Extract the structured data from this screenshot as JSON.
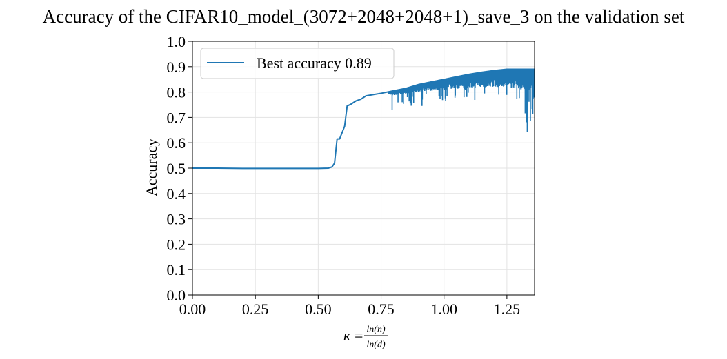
{
  "chart_data": {
    "type": "line",
    "title": "Accuracy of the CIFAR10_model_(3072+2048+2048+1)_save_3 on the validation set",
    "xlabel": {
      "symbol": "κ",
      "equals": "=",
      "numerator": "ln(n)",
      "denominator": "ln(d)"
    },
    "ylabel": "Accuracy",
    "xlim": [
      0.0,
      1.36
    ],
    "ylim": [
      0.0,
      1.0
    ],
    "x_ticks": [
      0.0,
      0.25,
      0.5,
      0.75,
      1.0,
      1.25
    ],
    "x_tick_labels": [
      "0.00",
      "0.25",
      "0.50",
      "0.75",
      "1.00",
      "1.25"
    ],
    "y_ticks": [
      0.0,
      0.1,
      0.2,
      0.3,
      0.4,
      0.5,
      0.6,
      0.7,
      0.8,
      0.9,
      1.0
    ],
    "y_tick_labels": [
      "0.0",
      "0.1",
      "0.2",
      "0.3",
      "0.4",
      "0.5",
      "0.6",
      "0.7",
      "0.8",
      "0.9",
      "1.0"
    ],
    "grid": true,
    "legend_position": "upper-left",
    "series": [
      {
        "name": "Best accuracy 0.89",
        "color": "#1f77b4",
        "x": [
          0.0,
          0.1,
          0.2,
          0.3,
          0.4,
          0.5,
          0.54,
          0.555,
          0.565,
          0.575,
          0.585,
          0.595,
          0.605,
          0.615,
          0.63,
          0.65,
          0.67,
          0.69,
          0.72,
          0.75,
          0.8,
          0.85,
          0.9,
          0.95,
          1.0,
          1.05,
          1.1,
          1.15,
          1.2,
          1.25,
          1.3,
          1.36
        ],
        "y": [
          0.5,
          0.5,
          0.499,
          0.499,
          0.499,
          0.499,
          0.5,
          0.505,
          0.52,
          0.615,
          0.615,
          0.64,
          0.665,
          0.745,
          0.752,
          0.765,
          0.772,
          0.785,
          0.79,
          0.795,
          0.805,
          0.815,
          0.83,
          0.84,
          0.85,
          0.86,
          0.87,
          0.878,
          0.885,
          0.89,
          0.89,
          0.89
        ]
      }
    ]
  }
}
